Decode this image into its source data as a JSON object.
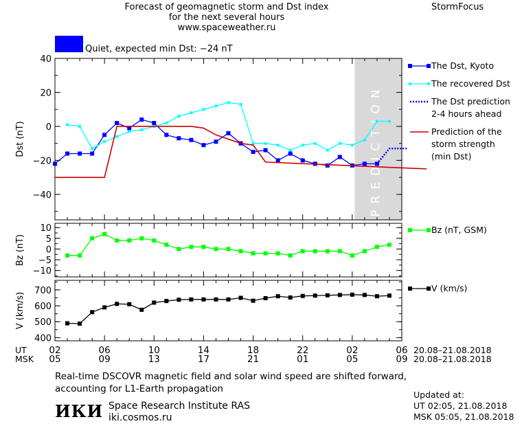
{
  "header": {
    "title_lines": [
      "Forecast of geomagnetic storm and Dst index",
      "for the next several hours",
      "www.spaceweather.ru"
    ],
    "brand": "StormFocus"
  },
  "status": {
    "text": "Quiet, expected min Dst: −24 nT",
    "color": "#0000ff"
  },
  "footnote": "Real-time DSCOVR magnetic field and solar wind speed are shifted forward, accounting for L1-Earth propagation",
  "institute": {
    "logo_text": "ИКИ",
    "name": "Space Research Institute RAS",
    "url": "iki.cosmos.ru"
  },
  "updated": {
    "label": "Updated at:",
    "ut_line": "UT   02:05, 21.08.2018",
    "msk_line": "MSK 05:05, 21.08.2018"
  },
  "time_axis": {
    "ut_label": "UT",
    "msk_label": "MSK",
    "ut_ticks": [
      "02",
      "06",
      "10",
      "14",
      "18",
      "22",
      "02",
      "06"
    ],
    "msk_ticks": [
      "05",
      "09",
      "13",
      "17",
      "21",
      "01",
      "05",
      "09"
    ],
    "date_range": "20.08–21.08.2018"
  },
  "chart_data": [
    {
      "type": "line",
      "panel": "dst",
      "ylabel": "Dst (nT)",
      "ylim": [
        -55,
        40
      ],
      "yticks": [
        40,
        20,
        0,
        -20,
        -40
      ],
      "xlim_hours": [
        0,
        28
      ],
      "prediction_band_text": "PREDICTION",
      "series": [
        {
          "name": "The Dst, Kyoto",
          "color": "#0000ff",
          "marker": "square",
          "x": [
            0,
            1,
            2,
            3,
            4,
            5,
            6,
            7,
            8,
            9,
            10,
            11,
            12,
            13,
            14,
            15,
            16,
            17,
            18,
            19,
            20,
            21,
            22,
            23,
            24,
            25,
            26
          ],
          "y": [
            -22,
            -16,
            -16,
            -16,
            -5,
            2,
            -1,
            4,
            2,
            -5,
            -7,
            -8,
            -11,
            -9,
            -4,
            -10,
            -15,
            -14,
            -20,
            -16,
            -20,
            -22,
            -23,
            -18,
            -23,
            -22,
            -22
          ]
        },
        {
          "name": "The recovered Dst",
          "color": "#00ffff",
          "marker": "dot",
          "x": [
            1,
            2,
            3,
            4,
            5,
            6,
            7,
            8,
            9,
            10,
            11,
            12,
            13,
            14,
            15,
            16,
            17,
            18,
            19,
            20,
            21,
            22,
            23,
            24,
            25,
            26,
            27
          ],
          "y": [
            1,
            0,
            -13,
            -9,
            -6,
            -3,
            -2,
            0,
            2,
            6,
            8,
            10,
            12,
            14,
            13,
            -10,
            -10,
            -11,
            -14,
            -11,
            -10,
            -14,
            -10,
            -11,
            -8,
            3,
            3
          ]
        },
        {
          "name": "The Dst prediction",
          "name_line2": "2-4 hours ahead",
          "color": "#0000ff",
          "style": "dotted",
          "x": [
            26,
            27,
            28.5
          ],
          "y": [
            -22,
            -13,
            -13
          ]
        },
        {
          "name": "Prediction of the",
          "name_line2": "storm strength",
          "name_line3": "(min Dst)",
          "color": "#cc0000",
          "style": "line",
          "x": [
            0,
            4,
            5,
            6,
            11,
            12,
            13,
            15,
            16,
            17,
            30
          ],
          "y": [
            -30,
            -30,
            0,
            0,
            0,
            -1,
            -5,
            -10,
            -11,
            -21,
            -25
          ]
        }
      ]
    },
    {
      "type": "line",
      "panel": "bz",
      "ylabel": "Bz (nT)",
      "ylim": [
        -13,
        12
      ],
      "yticks": [
        10,
        5,
        0,
        -5,
        -10
      ],
      "series": [
        {
          "name": "Bz (nT, GSM)",
          "color": "#00ff00",
          "marker": "square",
          "x": [
            1,
            2,
            3,
            4,
            5,
            6,
            7,
            8,
            9,
            10,
            11,
            12,
            13,
            14,
            15,
            16,
            17,
            18,
            19,
            20,
            21,
            22,
            23,
            24,
            25,
            26,
            27
          ],
          "y": [
            -3,
            -3,
            5,
            7,
            4,
            4,
            5,
            4,
            2,
            0,
            1,
            1,
            0,
            0,
            -1,
            -2,
            -2,
            -2,
            -3,
            -1,
            -1,
            -1,
            -1,
            -3,
            -1,
            1,
            2
          ]
        }
      ]
    },
    {
      "type": "line",
      "panel": "v",
      "ylabel": "V (km/s)",
      "ylim": [
        380,
        760
      ],
      "yticks": [
        700,
        600,
        500,
        400
      ],
      "series": [
        {
          "name": "V (km/s)",
          "color": "#000000",
          "marker": "square",
          "x": [
            1,
            2,
            3,
            4,
            5,
            6,
            7,
            8,
            9,
            10,
            11,
            12,
            13,
            14,
            15,
            16,
            17,
            18,
            19,
            20,
            21,
            22,
            23,
            24,
            25,
            26,
            27
          ],
          "y": [
            490,
            488,
            560,
            590,
            612,
            610,
            575,
            620,
            630,
            638,
            640,
            640,
            640,
            640,
            650,
            632,
            648,
            660,
            652,
            662,
            664,
            666,
            668,
            670,
            668,
            660,
            664
          ]
        }
      ]
    }
  ]
}
